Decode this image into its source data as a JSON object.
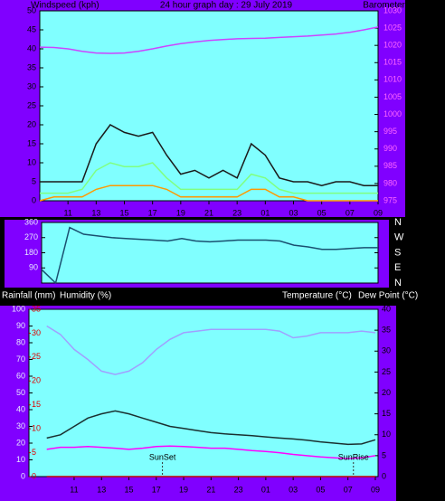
{
  "chart_data": [
    {
      "type": "line",
      "title": "24 hour graph day : 29 July 2019",
      "y_label": "Windspeed (kph)",
      "y2_label": "Barometer (hpa)",
      "x": [
        9,
        10,
        11,
        12,
        13,
        14,
        15,
        16,
        17,
        18,
        19,
        20,
        21,
        22,
        23,
        24,
        25,
        26,
        27,
        28,
        29,
        30,
        31,
        32,
        33
      ],
      "xlim": [
        9,
        33
      ],
      "xticks": [
        11,
        13,
        15,
        17,
        19,
        21,
        23,
        {
          "value": 25,
          "label": "01"
        },
        {
          "value": 27,
          "label": "03"
        },
        {
          "value": 29,
          "label": "05"
        },
        {
          "value": 31,
          "label": "07"
        },
        {
          "value": 33,
          "label": "09"
        }
      ],
      "ylim": [
        0,
        50
      ],
      "yticks": [
        0,
        5,
        10,
        15,
        20,
        25,
        30,
        35,
        40,
        45,
        50
      ],
      "y2lim": [
        975,
        1030
      ],
      "y2ticks": [
        975,
        980,
        985,
        990,
        995,
        1000,
        1005,
        1010,
        1015,
        1020,
        1025,
        1030
      ],
      "series": [
        {
          "color": "#1a1a1a",
          "values": [
            5,
            5,
            5,
            5,
            15,
            20,
            18,
            17,
            18,
            12,
            7,
            8,
            6,
            8,
            6,
            15,
            12,
            6,
            5,
            5,
            4,
            5,
            5,
            4,
            4
          ]
        },
        {
          "color": "#80ff80",
          "values": [
            2,
            2,
            2,
            3,
            8,
            10,
            9,
            9,
            10,
            6,
            3,
            3,
            3,
            3,
            3,
            7,
            6,
            3,
            2,
            2,
            2,
            2,
            2,
            2,
            2
          ]
        },
        {
          "color": "#ff9900",
          "values": [
            0,
            1,
            1,
            1,
            3,
            4,
            4,
            4,
            4,
            3,
            1,
            1,
            1,
            1,
            1,
            3,
            3,
            1,
            1,
            0,
            0,
            0,
            0,
            0,
            0
          ]
        },
        {
          "color": "#cc44ff",
          "axis": "y2",
          "values": [
            1019.5,
            1019.4,
            1019,
            1018.3,
            1017.8,
            1017.7,
            1017.8,
            1018.3,
            1019,
            1019.8,
            1020.5,
            1021,
            1021.4,
            1021.7,
            1021.9,
            1022,
            1022.1,
            1022.3,
            1022.5,
            1022.7,
            1023,
            1023.3,
            1023.8,
            1024.5,
            1025.3
          ]
        }
      ]
    },
    {
      "type": "line",
      "x": [
        9,
        10,
        11,
        12,
        13,
        14,
        15,
        16,
        17,
        18,
        19,
        20,
        21,
        22,
        23,
        24,
        25,
        26,
        27,
        28,
        29,
        30,
        31,
        32,
        33
      ],
      "xlim": [
        9,
        33
      ],
      "ylim": [
        0,
        360
      ],
      "yticks": [
        90,
        180,
        270,
        360
      ],
      "y2lim": [
        0,
        360
      ],
      "y2ticks": [
        {
          "value": 360,
          "label": "N"
        },
        {
          "value": 270,
          "label": "W"
        },
        {
          "value": 180,
          "label": "S"
        },
        {
          "value": 90,
          "label": "E"
        },
        {
          "value": 0,
          "label": "N"
        }
      ],
      "series": [
        {
          "color": "#1a5070",
          "values": [
            80,
            0,
            330,
            290,
            280,
            270,
            265,
            260,
            255,
            250,
            265,
            250,
            245,
            250,
            255,
            255,
            255,
            250,
            225,
            215,
            200,
            200,
            205,
            210,
            210
          ]
        }
      ]
    },
    {
      "type": "line",
      "y3_label": "Rainfall (mm)",
      "y_label": "Humidity (%)",
      "y2_label": "Temperature (°C)",
      "y4_label": "Dew Point (°C)",
      "x": [
        9,
        10,
        11,
        12,
        13,
        14,
        15,
        16,
        17,
        18,
        19,
        20,
        21,
        22,
        23,
        24,
        25,
        26,
        27,
        28,
        29,
        30,
        31,
        32,
        33
      ],
      "xlim": [
        7.7,
        33.2
      ],
      "xticks": [
        11,
        13,
        15,
        17,
        19,
        21,
        23,
        {
          "value": 25,
          "label": "01"
        },
        {
          "value": 27,
          "label": "03"
        },
        {
          "value": 29,
          "label": "05"
        },
        {
          "value": 31,
          "label": "07"
        },
        {
          "value": 33,
          "label": "09"
        }
      ],
      "ylim": [
        0,
        100
      ],
      "yticks": [
        0,
        10,
        20,
        30,
        40,
        50,
        60,
        70,
        80,
        90,
        100
      ],
      "y2lim": [
        0,
        40
      ],
      "y2ticks": [
        0,
        5,
        10,
        15,
        20,
        25,
        30,
        35,
        40
      ],
      "y3lim": [
        0,
        35
      ],
      "y3ticks": [
        0,
        5,
        10,
        15,
        20,
        25,
        30,
        35
      ],
      "series": [
        {
          "color": "#a0a0ff",
          "values": [
            90,
            85,
            76,
            70,
            63,
            61,
            63,
            68,
            76,
            82,
            86,
            87,
            88,
            88,
            88,
            88,
            88,
            87,
            83,
            84,
            86,
            86,
            86,
            87,
            86
          ]
        },
        {
          "color": "#1a3030",
          "axis": "y2",
          "values": [
            9.2,
            10,
            12,
            14,
            15,
            15.7,
            15,
            14,
            13,
            12,
            11.5,
            11,
            10.5,
            10.2,
            10,
            9.8,
            9.5,
            9.2,
            9,
            8.7,
            8.3,
            8,
            7.7,
            7.8,
            8.8
          ]
        },
        {
          "color": "#ff00ff",
          "axis": "y2",
          "values": [
            6.5,
            7,
            7,
            7.2,
            7,
            6.8,
            6.5,
            6.8,
            7.2,
            7.3,
            7.2,
            7,
            6.8,
            6.8,
            6.5,
            6.2,
            6,
            5.7,
            5.3,
            5,
            4.7,
            4.5,
            4.3,
            4.5,
            5
          ]
        },
        {
          "color": "#c00000",
          "axis": "y3",
          "values": [
            0,
            0,
            0,
            0,
            0,
            0,
            0,
            0,
            0,
            0,
            0,
            0,
            0,
            0,
            0,
            0,
            0,
            0,
            0,
            0,
            0,
            0,
            0,
            0,
            0
          ]
        }
      ],
      "annotations": [
        {
          "text": "SunSet",
          "x": 17.45
        },
        {
          "text": "SunRise",
          "x": 31.4
        }
      ]
    }
  ]
}
